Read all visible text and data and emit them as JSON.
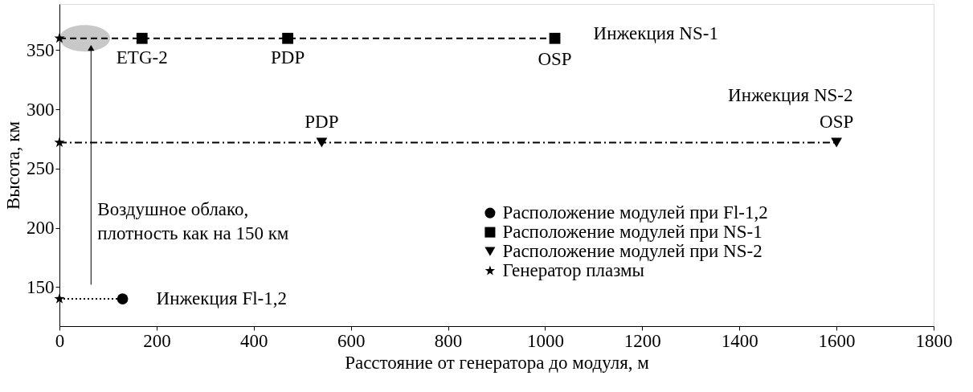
{
  "chart_data": {
    "type": "scatter",
    "xlabel": "Расстояние от генератора до модуля, м",
    "ylabel": "Высота, км",
    "xlim": [
      0,
      1800
    ],
    "xticks": [
      0,
      200,
      400,
      600,
      800,
      1000,
      1200,
      1400,
      1600,
      1800
    ],
    "ylim": [
      117,
      389
    ],
    "yticks": [
      150,
      200,
      250,
      300,
      350
    ],
    "grid": false,
    "legend": "right",
    "series": [
      {
        "type": "line",
        "line_style": "dotted",
        "color": "#000000",
        "x": [
          0,
          130
        ],
        "values": [
          140,
          140
        ]
      },
      {
        "type": "line",
        "line_style": "dashed",
        "color": "#000000",
        "x": [
          0,
          1020
        ],
        "values": [
          360,
          360
        ]
      },
      {
        "type": "line",
        "line_style": "dashdot",
        "color": "#000000",
        "x": [
          0,
          1600
        ],
        "values": [
          272,
          272
        ]
      },
      {
        "name": "Расположение модулей при Fl-1,2",
        "marker": "circle",
        "color": "#000000",
        "x": [
          130
        ],
        "values": [
          140
        ]
      },
      {
        "name": "Расположение модулей при NS-1",
        "marker": "square",
        "color": "#000000",
        "x": [
          170,
          470,
          1020
        ],
        "values": [
          360,
          360,
          360
        ]
      },
      {
        "name": "Расположение модулей при NS-2",
        "marker": "triangle-down",
        "color": "#000000",
        "x": [
          540,
          1600
        ],
        "values": [
          272,
          272
        ]
      },
      {
        "name": "Генератор плазмы",
        "marker": "star",
        "color": "#000000",
        "x": [
          0,
          0,
          0
        ],
        "values": [
          140,
          272,
          360
        ]
      }
    ],
    "annotations": [
      {
        "text": "ETG-2",
        "x": 170,
        "y": 360
      },
      {
        "text": "PDP",
        "x": 470,
        "y": 360
      },
      {
        "text": "OSP",
        "x": 1020,
        "y": 360
      },
      {
        "text": "Инжекция NS-1",
        "x": 1020,
        "y": 360
      },
      {
        "text": "Инжекция NS-2",
        "x": 1600,
        "y": 272
      },
      {
        "text": "PDP",
        "x": 540,
        "y": 272
      },
      {
        "text": "OSP",
        "x": 1600,
        "y": 272
      },
      {
        "text": "Инжекция Fl-1,2",
        "x": 130,
        "y": 140
      },
      "Воздушное облако,\nплотность как на 150 км"
    ]
  }
}
